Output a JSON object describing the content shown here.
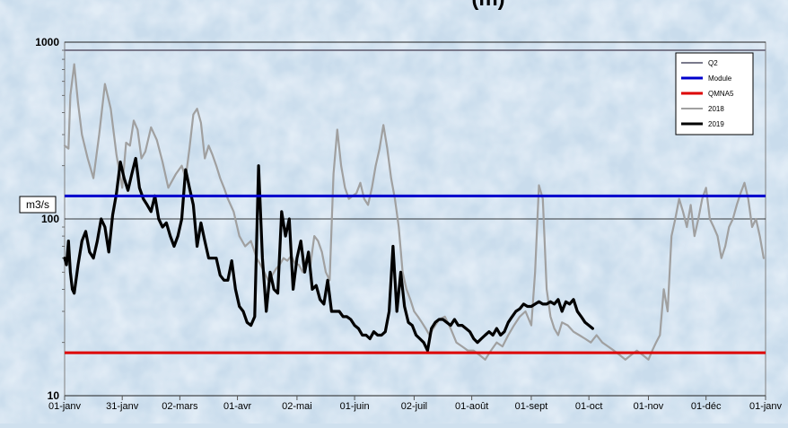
{
  "chart_data": {
    "type": "line",
    "title": "(m)",
    "ylabel": "m3/s",
    "yscale": "log",
    "ylim": [
      10,
      1000
    ],
    "xlim": [
      0,
      365
    ],
    "grid": "y-decades",
    "legend_position": "top-right",
    "y_ticks": [
      {
        "value": 10,
        "label": "10"
      },
      {
        "value": 100,
        "label": "100"
      },
      {
        "value": 1000,
        "label": "1000"
      }
    ],
    "x_ticks": [
      {
        "day": 0,
        "label": "01-janv"
      },
      {
        "day": 30,
        "label": "31-janv"
      },
      {
        "day": 60,
        "label": "02-mars"
      },
      {
        "day": 90,
        "label": "01-avr"
      },
      {
        "day": 121,
        "label": "02-mai"
      },
      {
        "day": 151,
        "label": "01-juin"
      },
      {
        "day": 182,
        "label": "02-juil"
      },
      {
        "day": 212,
        "label": "01-août"
      },
      {
        "day": 243,
        "label": "01-sept"
      },
      {
        "day": 273,
        "label": "01-oct"
      },
      {
        "day": 304,
        "label": "01-nov"
      },
      {
        "day": 334,
        "label": "01-déc"
      },
      {
        "day": 365,
        "label": "01-janv"
      }
    ],
    "reference_lines": [
      {
        "name": "Q2",
        "value": 900,
        "color": "#7a7a8c"
      },
      {
        "name": "Module",
        "value": 135,
        "color": "#0000cc"
      },
      {
        "name": "QMNA5",
        "value": 17.5,
        "color": "#dd0000"
      }
    ],
    "series": [
      {
        "name": "2018",
        "color": "#a0a0a0",
        "x": [
          0,
          2,
          3,
          5,
          7,
          9,
          12,
          15,
          18,
          21,
          24,
          27,
          30,
          32,
          34,
          36,
          38,
          40,
          42,
          45,
          48,
          51,
          54,
          58,
          61,
          63,
          65,
          67,
          69,
          71,
          73,
          75,
          77,
          79,
          81,
          83,
          85,
          88,
          91,
          94,
          97,
          100,
          102,
          104,
          106,
          108,
          110,
          112,
          114,
          116,
          118,
          120,
          122,
          124,
          126,
          128,
          130,
          132,
          134,
          136,
          138,
          140,
          142,
          144,
          146,
          148,
          150,
          152,
          154,
          156,
          158,
          160,
          162,
          164,
          166,
          168,
          170,
          172,
          174,
          176,
          178,
          180,
          182,
          184,
          186,
          188,
          190,
          192,
          195,
          198,
          201,
          204,
          207,
          210,
          213,
          216,
          219,
          222,
          225,
          228,
          231,
          234,
          237,
          240,
          243,
          245,
          247,
          249,
          251,
          253,
          255,
          257,
          259,
          262,
          265,
          268,
          271,
          274,
          277,
          280,
          283,
          286,
          289,
          292,
          295,
          298,
          301,
          304,
          306,
          308,
          310,
          312,
          314,
          316,
          318,
          320,
          322,
          324,
          326,
          328,
          330,
          332,
          334,
          336,
          338,
          340,
          342,
          344,
          346,
          348,
          350,
          352,
          354,
          356,
          358,
          360,
          362,
          364
        ],
        "values": [
          260,
          250,
          500,
          750,
          450,
          300,
          220,
          170,
          300,
          580,
          420,
          230,
          150,
          270,
          260,
          360,
          320,
          220,
          240,
          330,
          280,
          210,
          150,
          180,
          200,
          170,
          250,
          390,
          420,
          350,
          220,
          260,
          230,
          200,
          170,
          150,
          130,
          110,
          80,
          70,
          75,
          60,
          55,
          50,
          45,
          48,
          52,
          55,
          60,
          58,
          62,
          56,
          55,
          50,
          60,
          55,
          80,
          75,
          65,
          50,
          45,
          180,
          320,
          200,
          150,
          130,
          135,
          140,
          160,
          130,
          120,
          150,
          200,
          250,
          340,
          250,
          170,
          130,
          90,
          50,
          40,
          35,
          30,
          28,
          26,
          24,
          22,
          24,
          27,
          28,
          24,
          20,
          19,
          18,
          18,
          17,
          16,
          18,
          20,
          19,
          22,
          25,
          28,
          30,
          25,
          50,
          155,
          130,
          40,
          28,
          24,
          22,
          26,
          25,
          23,
          22,
          21,
          20,
          22,
          20,
          19,
          18,
          17,
          16,
          17,
          18,
          17,
          16,
          18,
          20,
          22,
          40,
          30,
          80,
          100,
          130,
          110,
          90,
          120,
          80,
          100,
          130,
          150,
          100,
          90,
          80,
          60,
          70,
          90,
          100,
          120,
          140,
          160,
          130,
          90,
          100,
          80,
          60
        ]
      },
      {
        "name": "2019",
        "color": "#000000",
        "x": [
          0,
          1,
          2,
          3,
          4,
          5,
          7,
          9,
          11,
          13,
          15,
          17,
          19,
          21,
          23,
          25,
          27,
          29,
          31,
          33,
          35,
          37,
          39,
          41,
          43,
          45,
          47,
          49,
          51,
          53,
          55,
          57,
          59,
          61,
          63,
          65,
          67,
          69,
          71,
          73,
          75,
          77,
          79,
          81,
          83,
          85,
          87,
          89,
          91,
          93,
          95,
          97,
          99,
          101,
          103,
          105,
          107,
          109,
          111,
          113,
          115,
          117,
          119,
          121,
          123,
          125,
          127,
          129,
          131,
          133,
          135,
          137,
          139,
          141,
          143,
          145,
          147,
          149,
          151,
          153,
          155,
          157,
          159,
          161,
          163,
          165,
          167,
          169,
          171,
          173,
          175,
          177,
          179,
          181,
          183,
          185,
          187,
          189,
          191,
          193,
          195,
          197,
          199,
          201,
          203,
          205,
          207,
          209,
          211,
          213,
          215,
          217,
          219,
          221,
          223,
          225,
          227,
          229,
          231,
          233,
          235,
          237,
          239,
          241,
          243,
          245,
          247,
          249,
          251,
          253,
          255,
          257,
          259,
          261,
          263,
          265,
          267,
          269,
          271,
          273,
          275
        ],
        "values": [
          60,
          55,
          75,
          50,
          40,
          38,
          55,
          75,
          85,
          65,
          60,
          75,
          100,
          90,
          65,
          105,
          140,
          210,
          170,
          145,
          180,
          220,
          150,
          130,
          120,
          110,
          135,
          100,
          90,
          95,
          80,
          70,
          80,
          100,
          190,
          150,
          120,
          70,
          95,
          75,
          60,
          60,
          60,
          48,
          45,
          45,
          58,
          40,
          32,
          30,
          26,
          25,
          28,
          200,
          60,
          30,
          50,
          40,
          38,
          110,
          80,
          100,
          40,
          60,
          75,
          50,
          65,
          40,
          42,
          35,
          33,
          45,
          30,
          30,
          30,
          28,
          28,
          27,
          25,
          24,
          22,
          22,
          21,
          23,
          22,
          22,
          23,
          30,
          70,
          30,
          50,
          32,
          26,
          25,
          22,
          21,
          20,
          18,
          24,
          26,
          27,
          27,
          26,
          25,
          27,
          25,
          25,
          24,
          23,
          21,
          20,
          21,
          22,
          23,
          22,
          24,
          22,
          23,
          26,
          28,
          30,
          31,
          33,
          32,
          32,
          33,
          34,
          33,
          33,
          34,
          33,
          35,
          30,
          34,
          33,
          35,
          30,
          28,
          26,
          25,
          24
        ]
      }
    ]
  }
}
